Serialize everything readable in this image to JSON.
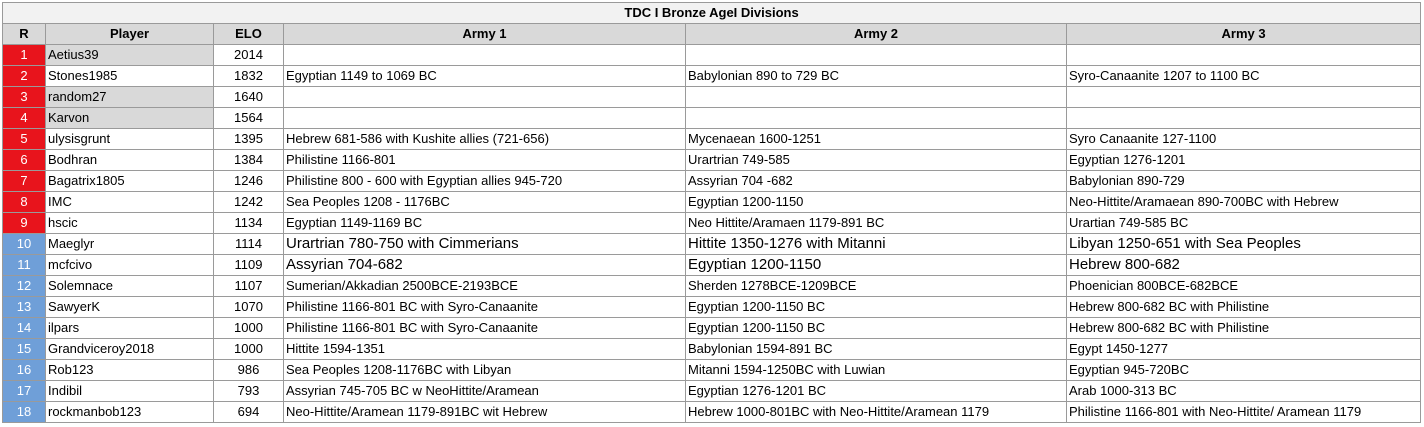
{
  "title": "TDC I Bronze AgeI Divisions",
  "table": {
    "headers": [
      "R",
      "Player",
      "ELO",
      "Army 1",
      "Army 2",
      "Army 3"
    ],
    "rows": [
      [
        1,
        "Aetius39",
        2014,
        null,
        null,
        null
      ],
      [
        2,
        "Stones1985",
        1832,
        "Egyptian 1149 to 1069 BC",
        "Babylonian 890 to 729 BC",
        "Syro-Canaanite 1207 to 1100 BC"
      ],
      [
        3,
        "random27",
        1640,
        null,
        null,
        null
      ],
      [
        4,
        "Karvon",
        1564,
        null,
        null,
        null
      ],
      [
        5,
        "ulysisgrunt",
        1395,
        "Hebrew 681-586 with Kushite allies (721-656)",
        "Mycenaean 1600-1251",
        "Syro Canaanite 127-1100"
      ],
      [
        6,
        "Bodhran",
        1384,
        "Philistine 1166-801",
        "Urartrian 749-585",
        "Egyptian 1276-1201"
      ],
      [
        7,
        "Bagatrix1805",
        1246,
        "Philistine 800 - 600 with Egyptian allies 945-720",
        "Assyrian 704 -682",
        "Babylonian 890-729"
      ],
      [
        8,
        "IMC",
        1242,
        "Sea Peoples 1208 - 1176BC",
        "Egyptian 1200-1150",
        "Neo-Hittite/Aramaean 890-700BC with Hebrew"
      ],
      [
        9,
        "hscic",
        1134,
        "Egyptian 1149-1169 BC",
        "Neo Hittite/Aramaen 1179-891 BC",
        "Urartian 749-585 BC"
      ],
      [
        10,
        "Maeglyr",
        1114,
        "Urartrian 780-750 with Cimmerians",
        "Hittite 1350-1276 with Mitanni",
        "Libyan 1250-651 with Sea Peoples"
      ],
      [
        11,
        "mcfcivo",
        1109,
        "Assyrian 704-682",
        "Egyptian 1200-1150",
        "Hebrew 800-682"
      ],
      [
        12,
        "Solemnace",
        1107,
        "Sumerian/Akkadian 2500BCE-2193BCE",
        "Sherden 1278BCE-1209BCE",
        "Phoenician 800BCE-682BCE"
      ],
      [
        13,
        "SawyerK",
        1070,
        "Philistine 1166-801 BC with Syro-Canaanite",
        "Egyptian 1200-1150 BC",
        "Hebrew 800-682 BC with Philistine"
      ],
      [
        14,
        "ilpars",
        1000,
        "Philistine 1166-801 BC with Syro-Canaanite",
        "Egyptian 1200-1150 BC",
        "Hebrew 800-682 BC with Philistine"
      ],
      [
        15,
        "Grandviceroy2018",
        1000,
        "Hittite 1594-1351",
        "Babylonian 1594-891 BC",
        "Egypt 1450-1277"
      ],
      [
        16,
        "Rob123",
        986,
        "Sea Peoples 1208-1176BC with Libyan",
        "Mitanni 1594-1250BC with Luwian",
        "Egyptian 945-720BC"
      ],
      [
        17,
        "Indibil",
        793,
        "Assyrian 745-705 BC w NeoHittite/Aramean",
        "Egyptian 1276-1201 BC",
        "Arab 1000-313 BC"
      ],
      [
        18,
        "rockmanbob123",
        694,
        "Neo-Hittite/Aramean 1179-891BC wit Hebrew",
        "Hebrew 1000-801BC with Neo-Hittite/Aramean 1179",
        "Philistine 1166-801 with Neo-Hittite/ Aramean 1179"
      ]
    ]
  }
}
